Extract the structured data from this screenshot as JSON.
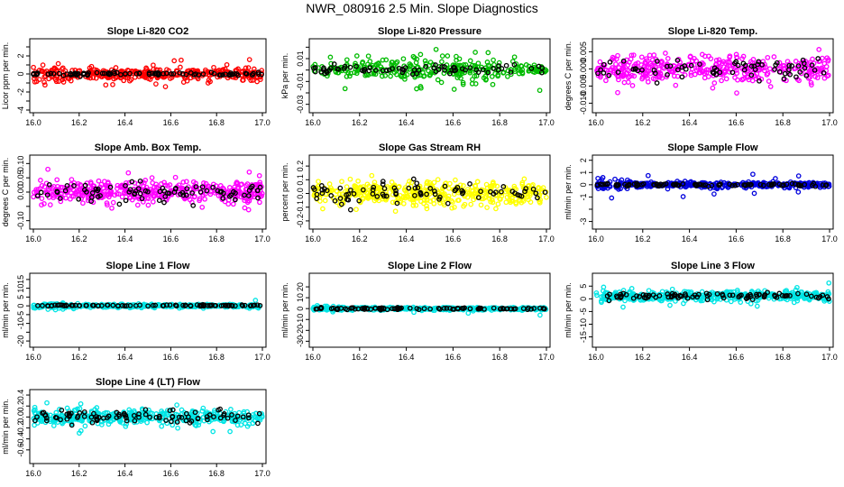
{
  "page": {
    "title": "NWR_080916  2.5 Min. Slope Diagnostics"
  },
  "chart_data": [
    {
      "id": "p1",
      "type": "scatter",
      "title": "Slope Li-820 CO2",
      "ylabel": "Licor ppm per min.",
      "xlim": [
        16.0,
        17.0
      ],
      "ylim": [
        -4,
        3.6
      ],
      "xticks": [
        "16.0",
        "16.2",
        "16.4",
        "16.6",
        "16.8",
        "17.0"
      ],
      "yticks": [
        -4,
        -3,
        -2,
        -1,
        0,
        1,
        2,
        3
      ],
      "ytick_labels": [
        "-4",
        "",
        "-2",
        "",
        "0",
        "",
        "2",
        ""
      ],
      "series": [
        {
          "color": "#ff0000",
          "n": 380,
          "center": 0,
          "spread": 0.55,
          "outlier_rate": 0.06,
          "outlier_spread": 1.6,
          "seed": 11,
          "start": 16.0,
          "end": 17.0,
          "taper": true
        },
        {
          "color": "#000000",
          "n": 90,
          "center": 0,
          "spread": 0.15,
          "outlier_rate": 0.0,
          "outlier_spread": 0,
          "seed": 12,
          "start": 16.0,
          "end": 17.0
        }
      ]
    },
    {
      "id": "p2",
      "type": "scatter",
      "title": "Slope Li-820 Pressure",
      "ylabel": "kPa per min.",
      "xlim": [
        16.0,
        17.0
      ],
      "ylim": [
        -0.035,
        0.025
      ],
      "xticks": [
        "16.0",
        "16.2",
        "16.4",
        "16.6",
        "16.8",
        "17.0"
      ],
      "yticks": [
        -0.03,
        -0.02,
        -0.01,
        0,
        0.01,
        0.02
      ],
      "ytick_labels": [
        "-0.03",
        "",
        "-0.01",
        "",
        "0.01",
        ""
      ],
      "series": [
        {
          "color": "#00bb00",
          "n": 300,
          "center": 0.0005,
          "spread": 0.006,
          "outlier_rate": 0.05,
          "outlier_spread": 0.02,
          "seed": 21,
          "start": 16.0,
          "end": 17.0,
          "grow": true
        },
        {
          "color": "#000000",
          "n": 70,
          "center": 0,
          "spread": 0.003,
          "outlier_rate": 0.0,
          "outlier_spread": 0,
          "seed": 22,
          "start": 16.0,
          "end": 17.0
        }
      ]
    },
    {
      "id": "p3",
      "type": "scatter",
      "title": "Slope Li-820 Temp.",
      "ylabel": "degrees C per min.",
      "xlim": [
        16.0,
        17.0
      ],
      "ylim": [
        -0.012,
        0.008
      ],
      "xticks": [
        "16.0",
        "16.2",
        "16.4",
        "16.6",
        "16.8",
        "17.0"
      ],
      "yticks": [
        -0.01,
        -0.005,
        0,
        0.005
      ],
      "ytick_labels": [
        "-0.010",
        "-0.005",
        "0.000",
        "0.005"
      ],
      "series": [
        {
          "color": "#ff00ff",
          "n": 380,
          "center": 0.0,
          "spread": 0.0035,
          "outlier_rate": 0.03,
          "outlier_spread": 0.007,
          "seed": 31,
          "start": 16.0,
          "end": 17.0
        },
        {
          "color": "#000000",
          "n": 70,
          "center": 0,
          "spread": 0.003,
          "outlier_rate": 0.02,
          "outlier_spread": 0.006,
          "seed": 32,
          "start": 16.0,
          "end": 17.0
        }
      ]
    },
    {
      "id": "p4",
      "type": "scatter",
      "title": "Slope Amb. Box Temp.",
      "ylabel": "degrees C per min.",
      "xlim": [
        16.0,
        17.0
      ],
      "ylim": [
        -0.12,
        0.12
      ],
      "xticks": [
        "16.0",
        "16.2",
        "16.4",
        "16.6",
        "16.8",
        "17.0"
      ],
      "yticks": [
        -0.1,
        -0.05,
        0,
        0.05,
        0.1
      ],
      "ytick_labels": [
        "-0.10",
        "",
        "0.00",
        "0.05",
        "0.10"
      ],
      "series": [
        {
          "color": "#ff00ff",
          "n": 420,
          "center": 0.0,
          "spread": 0.035,
          "outlier_rate": 0.03,
          "outlier_spread": 0.08,
          "seed": 41,
          "start": 16.0,
          "end": 17.0
        },
        {
          "color": "#000000",
          "n": 80,
          "center": 0,
          "spread": 0.03,
          "outlier_rate": 0.0,
          "outlier_spread": 0,
          "seed": 42,
          "start": 16.0,
          "end": 17.0
        }
      ]
    },
    {
      "id": "p5",
      "type": "scatter",
      "title": "Slope Gas Stream RH",
      "ylabel": "percent per min.",
      "xlim": [
        16.0,
        17.0
      ],
      "ylim": [
        -0.24,
        0.26
      ],
      "xticks": [
        "16.0",
        "16.2",
        "16.4",
        "16.6",
        "16.8",
        "17.0"
      ],
      "yticks": [
        -0.2,
        -0.1,
        0,
        0.1,
        0.2
      ],
      "ytick_labels": [
        "-0.2",
        "-0.1",
        "0.0",
        "0.1",
        "0.2"
      ],
      "series": [
        {
          "color": "#ffff00",
          "n": 450,
          "center": 0.0,
          "spread": 0.08,
          "outlier_rate": 0.02,
          "outlier_spread": 0.15,
          "seed": 51,
          "start": 16.0,
          "end": 17.0
        },
        {
          "color": "#000000",
          "n": 80,
          "center": 0,
          "spread": 0.07,
          "outlier_rate": 0.0,
          "outlier_spread": 0,
          "seed": 52,
          "start": 16.0,
          "end": 17.0
        }
      ]
    },
    {
      "id": "p6",
      "type": "scatter",
      "title": "Slope Sample Flow",
      "ylabel": "ml/min per min.",
      "xlim": [
        16.0,
        17.0
      ],
      "ylim": [
        -3.4,
        2.2
      ],
      "xticks": [
        "16.0",
        "16.2",
        "16.4",
        "16.6",
        "16.8",
        "17.0"
      ],
      "yticks": [
        -3,
        -2,
        -1,
        0,
        1,
        2
      ],
      "ytick_labels": [
        "-3",
        "",
        "-1",
        "0",
        "1",
        "2"
      ],
      "series": [
        {
          "color": "#0000dd",
          "n": 420,
          "center": 0.0,
          "spread": 0.2,
          "outlier_rate": 0.03,
          "outlier_spread": 1.2,
          "seed": 61,
          "start": 16.0,
          "end": 17.0,
          "taper": true
        },
        {
          "color": "#000000",
          "n": 90,
          "center": 0,
          "spread": 0.1,
          "outlier_rate": 0.0,
          "outlier_spread": 0,
          "seed": 62,
          "start": 16.0,
          "end": 17.0
        }
      ]
    },
    {
      "id": "p7",
      "type": "scatter",
      "title": "Slope Line 1 Flow",
      "ylabel": "ml/min per min.",
      "xlim": [
        16.0,
        17.0
      ],
      "ylim": [
        -22,
        17
      ],
      "xticks": [
        "16.0",
        "16.2",
        "16.4",
        "16.6",
        "16.8",
        "17.0"
      ],
      "yticks": [
        -20,
        -15,
        -10,
        -5,
        0,
        5,
        10,
        15
      ],
      "ytick_labels": [
        "-20",
        "",
        "-10",
        "-5",
        "0",
        "5",
        "10",
        "15"
      ],
      "series": [
        {
          "color": "#00e5e5",
          "n": 420,
          "center": 0.0,
          "spread": 0.8,
          "outlier_rate": 0.02,
          "outlier_spread": 4,
          "seed": 71,
          "start": 16.0,
          "end": 17.0,
          "taper": true
        },
        {
          "color": "#000000",
          "n": 90,
          "center": 0.2,
          "spread": 0.3,
          "outlier_rate": 0.0,
          "outlier_spread": 0,
          "seed": 72,
          "start": 16.0,
          "end": 17.0
        }
      ]
    },
    {
      "id": "p8",
      "type": "scatter",
      "title": "Slope Line 2 Flow",
      "ylabel": "ml/min per min.",
      "xlim": [
        16.0,
        17.0
      ],
      "ylim": [
        -33,
        30
      ],
      "xticks": [
        "16.0",
        "16.2",
        "16.4",
        "16.6",
        "16.8",
        "17.0"
      ],
      "yticks": [
        -30,
        -20,
        -10,
        0,
        10,
        20
      ],
      "ytick_labels": [
        "-30",
        "-20",
        "-10",
        "0",
        "10",
        "20"
      ],
      "series": [
        {
          "color": "#00e5e5",
          "n": 400,
          "center": 0.0,
          "spread": 1.2,
          "outlier_rate": 0.02,
          "outlier_spread": 6,
          "seed": 81,
          "start": 16.0,
          "end": 17.0,
          "taper": true
        },
        {
          "color": "#000000",
          "n": 90,
          "center": 0,
          "spread": 0.8,
          "outlier_rate": 0.0,
          "outlier_spread": 0,
          "seed": 82,
          "start": 16.0,
          "end": 17.0
        }
      ]
    },
    {
      "id": "p9",
      "type": "scatter",
      "title": "Slope Line 3 Flow",
      "ylabel": "ml/min per min.",
      "xlim": [
        16.0,
        17.0
      ],
      "ylim": [
        -18,
        9
      ],
      "xticks": [
        "16.0",
        "16.2",
        "16.4",
        "16.6",
        "16.8",
        "17.0"
      ],
      "yticks": [
        -15,
        -10,
        -5,
        0,
        5
      ],
      "ytick_labels": [
        "-15",
        "-10",
        "-5",
        "0",
        "5"
      ],
      "series": [
        {
          "color": "#00e5e5",
          "n": 450,
          "center": 1.0,
          "spread": 1.7,
          "outlier_rate": 0.02,
          "outlier_spread": 6,
          "seed": 91,
          "start": 16.0,
          "end": 17.0
        },
        {
          "color": "#000000",
          "n": 90,
          "center": 1.0,
          "spread": 1.0,
          "outlier_rate": 0.02,
          "outlier_spread": 3,
          "seed": 92,
          "start": 16.0,
          "end": 17.0
        }
      ]
    },
    {
      "id": "p10",
      "type": "scatter",
      "title": "Slope Line 4 (LT) Flow",
      "ylabel": "ml/min per min.",
      "xlim": [
        16.0,
        17.0
      ],
      "ylim": [
        -0.8,
        0.45
      ],
      "xticks": [
        "16.0",
        "16.2",
        "16.4",
        "16.6",
        "16.8",
        "17.0"
      ],
      "yticks": [
        -0.6,
        -0.4,
        -0.2,
        0,
        0.2,
        0.4
      ],
      "ytick_labels": [
        "-0.6",
        "-0.4",
        "-0.2",
        "0.0",
        "0.2",
        "0.4"
      ],
      "series": [
        {
          "color": "#00e5e5",
          "n": 450,
          "center": 0.0,
          "spread": 0.12,
          "outlier_rate": 0.03,
          "outlier_spread": 0.3,
          "seed": 101,
          "start": 16.0,
          "end": 17.0
        },
        {
          "color": "#000000",
          "n": 90,
          "center": 0,
          "spread": 0.1,
          "outlier_rate": 0.0,
          "outlier_spread": 0,
          "seed": 102,
          "start": 16.0,
          "end": 17.0
        }
      ]
    }
  ]
}
